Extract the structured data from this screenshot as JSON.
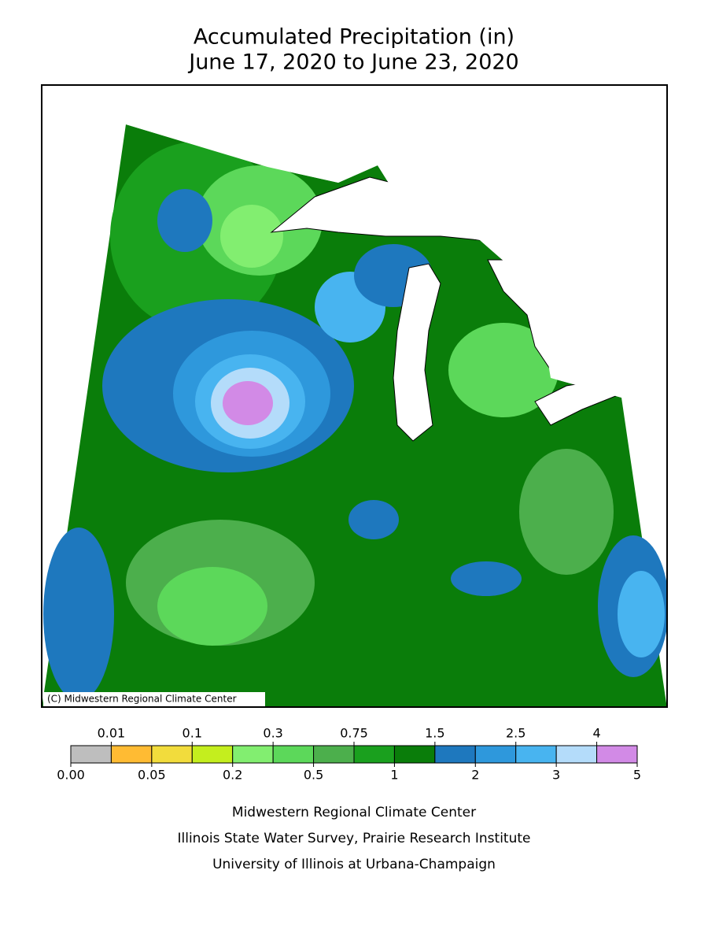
{
  "title": [
    "Accumulated Precipitation (in)",
    "June 17, 2020 to June 23, 2020"
  ],
  "map": {
    "credit": "(C) Midwestern Regional Climate Center"
  },
  "legend": {
    "breaks": [
      {
        "value": 0,
        "label": "0.00"
      },
      0.01,
      0.05,
      0.1,
      0.2,
      0.3,
      0.5,
      0.75,
      1,
      1.5,
      2,
      2.5,
      3,
      4,
      5
    ],
    "colors": [
      "#bebebe",
      "#ffbb33",
      "#f2dc3c",
      "#c4ee1e",
      "#82ee70",
      "#5cd85a",
      "#4caf4c",
      "#1aa01e",
      "#0a7d0a",
      "#1e78be",
      "#2e98dc",
      "#48b4f0",
      "#b4dcfa",
      "#d28ae6"
    ]
  },
  "footer": [
    "Midwestern Regional Climate Center",
    "Illinois State Water Survey, Prairie Research Institute",
    "University of Illinois at Urbana-Champaign"
  ]
}
